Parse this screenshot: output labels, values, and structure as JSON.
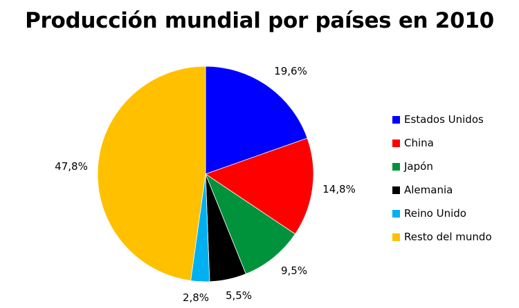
{
  "chart_data": {
    "type": "pie",
    "title": "Producción mundial por países en 2010",
    "categories": [
      "Estados Unidos",
      "China",
      "Japón",
      "Alemania",
      "Reino Unido",
      "Resto del mundo"
    ],
    "values": [
      19.6,
      14.8,
      9.5,
      5.5,
      2.8,
      47.8
    ],
    "value_labels": [
      "19,6%",
      "14,8%",
      "9,5%",
      "5,5%",
      "2,8%",
      "47,8%"
    ],
    "colors": [
      "#0000ff",
      "#ff0000",
      "#00933c",
      "#000000",
      "#00b0f0",
      "#ffc000"
    ],
    "legend_position": "right",
    "start_angle": "12 o'clock",
    "direction": "clockwise"
  }
}
